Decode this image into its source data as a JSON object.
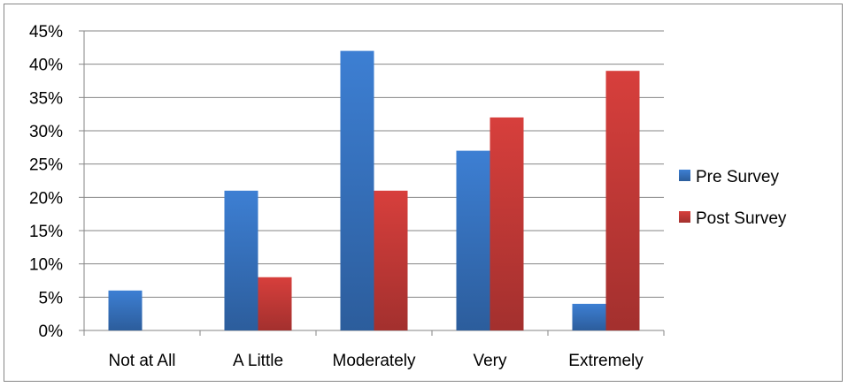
{
  "chart_data": {
    "type": "bar",
    "categories": [
      "Not at All",
      "A Little",
      "Moderately",
      "Very",
      "Extremely"
    ],
    "series": [
      {
        "name": "Pre Survey",
        "values": [
          6,
          21,
          42,
          27,
          4
        ],
        "color": "#4a7ebb"
      },
      {
        "name": "Post Survey",
        "values": [
          0,
          8,
          21,
          32,
          39
        ],
        "color": "#be4b48"
      }
    ],
    "ylim": [
      0,
      45
    ],
    "yticks": [
      "0%",
      "5%",
      "10%",
      "15%",
      "20%",
      "25%",
      "30%",
      "35%",
      "40%",
      "45%"
    ],
    "grid": true,
    "legend_position": "right"
  }
}
